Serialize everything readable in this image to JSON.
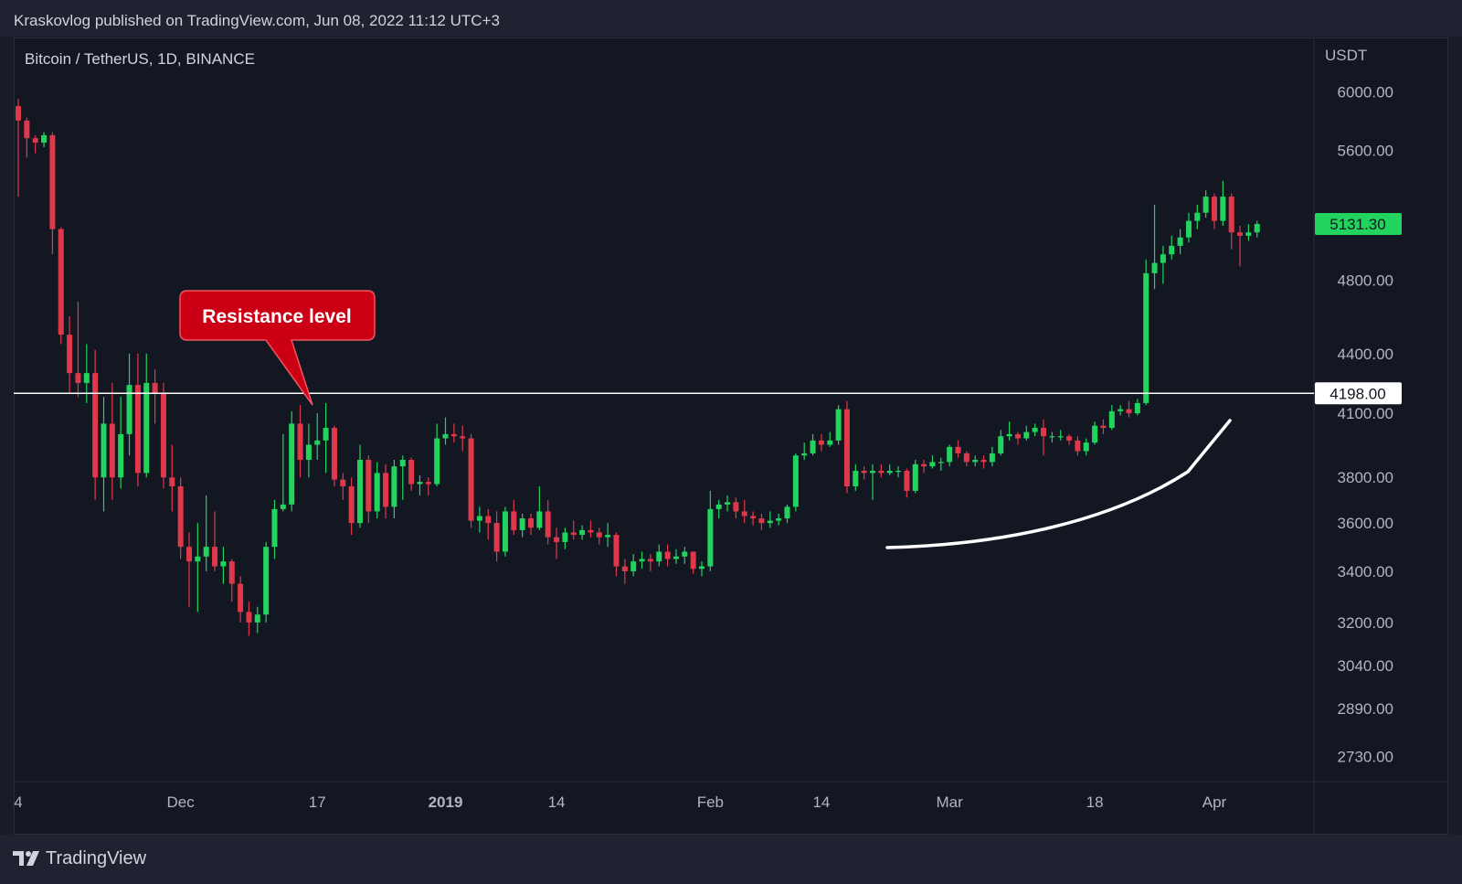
{
  "header": {
    "attribution": "Kraskovlog published on TradingView.com, Jun 08, 2022 11:12 UTC+3"
  },
  "footer": {
    "brand": "TradingView"
  },
  "colors": {
    "background": "#131722",
    "up": "#22d35e",
    "down": "#e0384b",
    "grid_text": "#b2b5be",
    "resistance_line": "#ffffff",
    "callout": "#cc0014",
    "last_price_badge": "#22d35e"
  },
  "chart_data": {
    "type": "candlestick",
    "symbol": "Bitcoin / TetherUS, 1D, BINANCE",
    "y_axis_unit": "USDT",
    "y_scale": "log",
    "ylim": [
      2650,
      6400
    ],
    "yticks": [
      "6000.00",
      "5600.00",
      "4800.00",
      "4400.00",
      "4100.00",
      "3800.00",
      "3600.00",
      "3400.00",
      "3200.00",
      "3040.00",
      "2890.00",
      "2730.00"
    ],
    "xticks": [
      {
        "label": "4",
        "day": 0
      },
      {
        "label": "Dec",
        "day": 19
      },
      {
        "label": "17",
        "day": 35
      },
      {
        "label": "2019",
        "day": 50
      },
      {
        "label": "14",
        "day": 63
      },
      {
        "label": "Feb",
        "day": 81
      },
      {
        "label": "14",
        "day": 94
      },
      {
        "label": "Mar",
        "day": 109
      },
      {
        "label": "18",
        "day": 126
      },
      {
        "label": "Apr",
        "day": 140
      }
    ],
    "last_price": "5131.30",
    "resistance": {
      "value": 4198,
      "label": "4198.00"
    },
    "annotation": "Resistance level",
    "candles": [
      [
        5900,
        5800,
        5950,
        5300
      ],
      [
        5800,
        5680,
        5820,
        5550
      ],
      [
        5680,
        5650,
        5700,
        5580
      ],
      [
        5650,
        5700,
        5720,
        5620
      ],
      [
        5700,
        5100,
        5720,
        4950
      ],
      [
        5100,
        4500,
        5110,
        4450
      ],
      [
        4500,
        4300,
        4600,
        4200
      ],
      [
        4300,
        4250,
        4680,
        4180
      ],
      [
        4250,
        4300,
        4450,
        4150
      ],
      [
        4300,
        3800,
        4420,
        3700
      ],
      [
        3800,
        4050,
        4180,
        3650
      ],
      [
        4050,
        3800,
        4250,
        3700
      ],
      [
        3800,
        4000,
        4180,
        3750
      ],
      [
        4000,
        4240,
        4400,
        3900
      ],
      [
        4240,
        3820,
        4400,
        3760
      ],
      [
        3820,
        4250,
        4400,
        3800
      ],
      [
        4250,
        4200,
        4320,
        4050
      ],
      [
        4200,
        3800,
        4250,
        3750
      ],
      [
        3800,
        3760,
        3950,
        3650
      ],
      [
        3760,
        3500,
        3800,
        3450
      ],
      [
        3500,
        3440,
        3560,
        3260
      ],
      [
        3440,
        3460,
        3600,
        3240
      ],
      [
        3460,
        3500,
        3720,
        3400
      ],
      [
        3500,
        3420,
        3650,
        3400
      ],
      [
        3420,
        3440,
        3500,
        3350
      ],
      [
        3440,
        3350,
        3450,
        3280
      ],
      [
        3350,
        3240,
        3380,
        3200
      ],
      [
        3240,
        3200,
        3280,
        3150
      ],
      [
        3200,
        3230,
        3260,
        3160
      ],
      [
        3230,
        3500,
        3520,
        3200
      ],
      [
        3500,
        3660,
        3700,
        3450
      ],
      [
        3660,
        3680,
        4000,
        3650
      ],
      [
        3680,
        4050,
        4110,
        3650
      ],
      [
        4050,
        3880,
        4140,
        3800
      ],
      [
        3880,
        3950,
        4050,
        3800
      ],
      [
        3950,
        3970,
        4100,
        3880
      ],
      [
        3970,
        4030,
        4150,
        3820
      ],
      [
        4030,
        3790,
        4040,
        3760
      ],
      [
        3790,
        3760,
        3820,
        3700
      ],
      [
        3760,
        3600,
        3800,
        3550
      ],
      [
        3600,
        3880,
        3950,
        3580
      ],
      [
        3880,
        3650,
        3900,
        3600
      ],
      [
        3650,
        3820,
        3870,
        3620
      ],
      [
        3820,
        3670,
        3860,
        3620
      ],
      [
        3670,
        3850,
        3880,
        3620
      ],
      [
        3850,
        3880,
        3900,
        3700
      ],
      [
        3880,
        3770,
        3890,
        3740
      ],
      [
        3770,
        3780,
        3810,
        3720
      ],
      [
        3780,
        3770,
        3800,
        3720
      ],
      [
        3770,
        3980,
        4050,
        3760
      ],
      [
        3980,
        4000,
        4080,
        3950
      ],
      [
        4000,
        3990,
        4050,
        3960
      ],
      [
        3990,
        3980,
        4040,
        3920
      ],
      [
        3980,
        3610,
        4000,
        3580
      ],
      [
        3610,
        3630,
        3670,
        3560
      ],
      [
        3630,
        3600,
        3660,
        3530
      ],
      [
        3600,
        3480,
        3650,
        3440
      ],
      [
        3480,
        3650,
        3670,
        3460
      ],
      [
        3650,
        3570,
        3700,
        3550
      ],
      [
        3570,
        3620,
        3640,
        3540
      ],
      [
        3620,
        3580,
        3640,
        3550
      ],
      [
        3580,
        3650,
        3760,
        3570
      ],
      [
        3650,
        3540,
        3700,
        3510
      ],
      [
        3540,
        3520,
        3580,
        3450
      ],
      [
        3520,
        3560,
        3580,
        3490
      ],
      [
        3560,
        3550,
        3610,
        3530
      ],
      [
        3550,
        3570,
        3590,
        3530
      ],
      [
        3570,
        3560,
        3610,
        3540
      ],
      [
        3560,
        3540,
        3580,
        3510
      ],
      [
        3540,
        3550,
        3600,
        3500
      ],
      [
        3550,
        3420,
        3560,
        3380
      ],
      [
        3420,
        3400,
        3450,
        3350
      ],
      [
        3400,
        3440,
        3470,
        3380
      ],
      [
        3440,
        3450,
        3480,
        3410
      ],
      [
        3450,
        3440,
        3470,
        3400
      ],
      [
        3440,
        3480,
        3510,
        3420
      ],
      [
        3480,
        3450,
        3510,
        3420
      ],
      [
        3450,
        3460,
        3490,
        3430
      ],
      [
        3460,
        3480,
        3500,
        3430
      ],
      [
        3480,
        3410,
        3480,
        3390
      ],
      [
        3410,
        3420,
        3440,
        3380
      ],
      [
        3420,
        3660,
        3740,
        3400
      ],
      [
        3660,
        3680,
        3700,
        3620
      ],
      [
        3680,
        3690,
        3720,
        3650
      ],
      [
        3690,
        3650,
        3710,
        3620
      ],
      [
        3650,
        3630,
        3700,
        3600
      ],
      [
        3630,
        3620,
        3650,
        3590
      ],
      [
        3620,
        3600,
        3640,
        3570
      ],
      [
        3600,
        3610,
        3650,
        3580
      ],
      [
        3610,
        3620,
        3640,
        3590
      ],
      [
        3620,
        3670,
        3680,
        3600
      ],
      [
        3670,
        3900,
        3910,
        3650
      ],
      [
        3900,
        3910,
        3960,
        3880
      ],
      [
        3910,
        3970,
        4000,
        3900
      ],
      [
        3970,
        3950,
        4000,
        3920
      ],
      [
        3950,
        3970,
        4010,
        3940
      ],
      [
        3970,
        4120,
        4140,
        3950
      ],
      [
        4120,
        3760,
        4160,
        3730
      ],
      [
        3760,
        3830,
        3860,
        3740
      ],
      [
        3830,
        3820,
        3850,
        3790
      ],
      [
        3820,
        3830,
        3860,
        3700
      ],
      [
        3830,
        3820,
        3860,
        3800
      ],
      [
        3820,
        3830,
        3860,
        3810
      ],
      [
        3830,
        3830,
        3850,
        3800
      ],
      [
        3830,
        3740,
        3840,
        3710
      ],
      [
        3740,
        3860,
        3880,
        3730
      ],
      [
        3860,
        3850,
        3880,
        3820
      ],
      [
        3850,
        3870,
        3900,
        3840
      ],
      [
        3870,
        3870,
        3890,
        3830
      ],
      [
        3870,
        3940,
        3950,
        3850
      ],
      [
        3940,
        3910,
        3970,
        3890
      ],
      [
        3910,
        3870,
        3920,
        3850
      ],
      [
        3870,
        3880,
        3900,
        3850
      ],
      [
        3880,
        3870,
        3900,
        3840
      ],
      [
        3870,
        3910,
        3940,
        3850
      ],
      [
        3910,
        3990,
        4020,
        3900
      ],
      [
        3990,
        4000,
        4060,
        3970
      ],
      [
        4000,
        3980,
        4010,
        3950
      ],
      [
        3980,
        4010,
        4040,
        3970
      ],
      [
        4010,
        4030,
        4050,
        3990
      ],
      [
        4030,
        3990,
        4070,
        3900
      ],
      [
        3990,
        3990,
        4010,
        3960
      ],
      [
        3990,
        3990,
        4020,
        3970
      ],
      [
        3990,
        3970,
        4000,
        3950
      ],
      [
        3970,
        3920,
        3990,
        3900
      ],
      [
        3920,
        3960,
        3980,
        3900
      ],
      [
        3960,
        4040,
        4060,
        3950
      ],
      [
        4040,
        4030,
        4070,
        4000
      ],
      [
        4030,
        4110,
        4140,
        4020
      ],
      [
        4110,
        4120,
        4140,
        4090
      ],
      [
        4120,
        4100,
        4160,
        4080
      ],
      [
        4100,
        4150,
        4170,
        4090
      ],
      [
        4150,
        4840,
        4920,
        4140
      ],
      [
        4840,
        4900,
        5250,
        4750
      ],
      [
        4900,
        4950,
        5000,
        4780
      ],
      [
        4950,
        5000,
        5060,
        4920
      ],
      [
        5000,
        5050,
        5100,
        4950
      ],
      [
        5050,
        5150,
        5200,
        5020
      ],
      [
        5150,
        5200,
        5250,
        5100
      ],
      [
        5200,
        5300,
        5340,
        5170
      ],
      [
        5300,
        5150,
        5320,
        5100
      ],
      [
        5150,
        5300,
        5400,
        5120
      ],
      [
        5300,
        5080,
        5320,
        4980
      ],
      [
        5080,
        5060,
        5120,
        4880
      ],
      [
        5060,
        5080,
        5130,
        5030
      ],
      [
        5080,
        5131,
        5150,
        5050
      ]
    ]
  }
}
